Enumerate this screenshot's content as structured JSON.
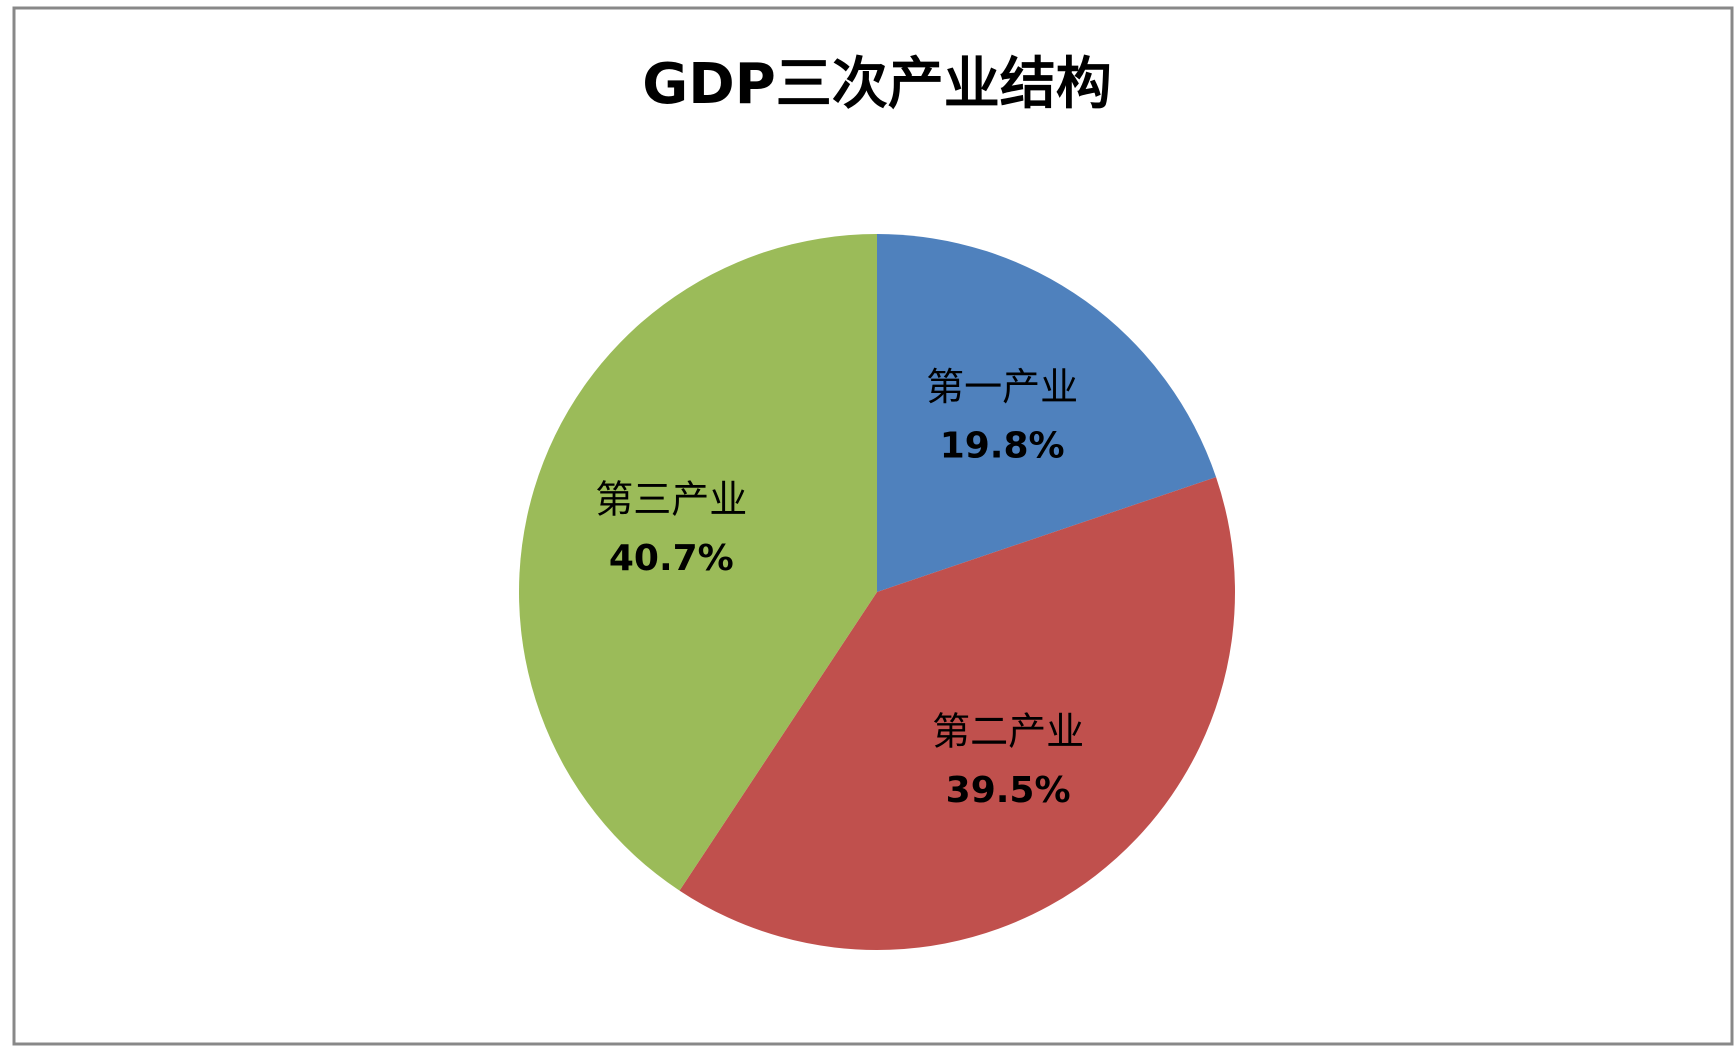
{
  "chart_data": {
    "type": "pie",
    "title": "GDP三次产业结构",
    "categories": [
      "第一产业",
      "第二产业",
      "第三产业"
    ],
    "values": [
      19.8,
      39.5,
      40.7
    ],
    "value_labels": [
      "19.8%",
      "39.5%",
      "40.7%"
    ],
    "colors": [
      "#4f81bd",
      "#c0504d",
      "#9bbb59"
    ]
  }
}
